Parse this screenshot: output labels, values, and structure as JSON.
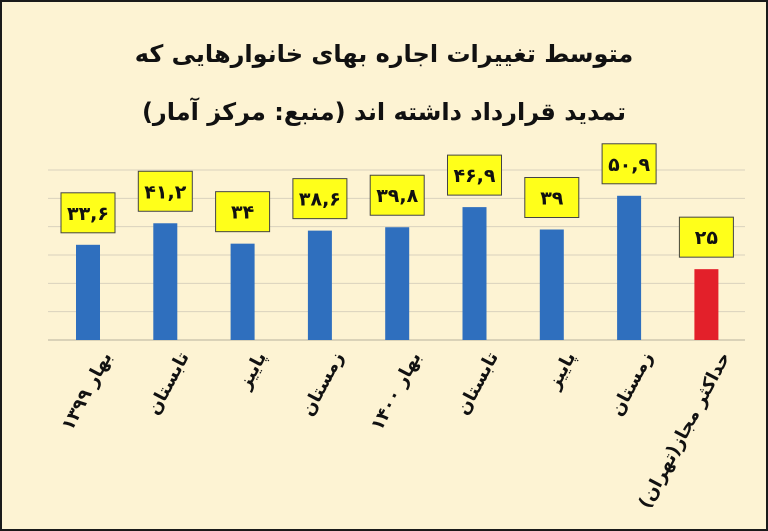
{
  "title_line1": "متوسط تغییرات اجاره بهای خانوارهایی که",
  "title_line2": "تمدید قرارداد داشته اند (منبع: مرکز آمار)",
  "colors": {
    "background": "#fdf3d3",
    "bar": "#2f6fbe",
    "bar_highlight": "#e3202a",
    "label_box": "#ffff1a",
    "grid": "#d9d2bd"
  },
  "chart_data": {
    "type": "bar",
    "title": "متوسط تغییرات اجاره بهای خانوارهایی که تمدید قرارداد داشته اند (منبع: مرکز آمار)",
    "categories": [
      "بهار ۱۳۹۹",
      "تابستان",
      "پاییز",
      "زمستان",
      "بهار ۱۴۰۰",
      "تابستان",
      "پاییز",
      "زمستان",
      "حداکثر مجاز(تهران)"
    ],
    "values": [
      33.6,
      41.2,
      34,
      38.6,
      39.8,
      46.9,
      39,
      50.9,
      25
    ],
    "data_labels": [
      "۳۳,۶",
      "۴۱,۲",
      "۳۴",
      "۳۸,۶",
      "۳۹,۸",
      "۴۶,۹",
      "۳۹",
      "۵۰,۹",
      "۲۵"
    ],
    "highlight_index": 8,
    "ylim": [
      0,
      60
    ],
    "grid": true,
    "legend": "none"
  }
}
